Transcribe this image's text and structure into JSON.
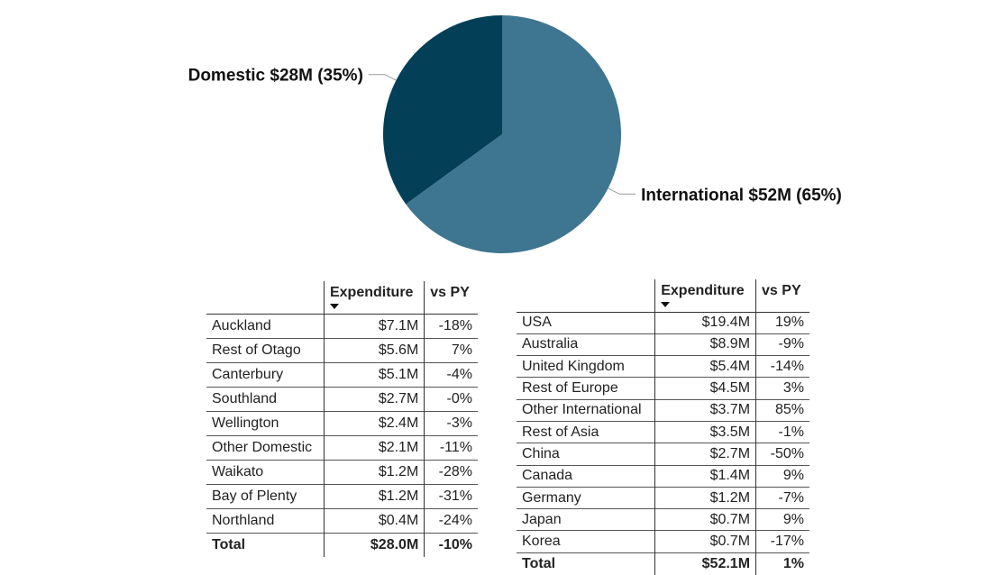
{
  "chart_data": {
    "type": "pie",
    "slices": [
      {
        "label": "Domestic",
        "value": 28,
        "display": "$28M",
        "percent": "35%",
        "color": "#033f56"
      },
      {
        "label": "International",
        "value": 52,
        "display": "$52M",
        "percent": "65%",
        "color": "#3e7590"
      }
    ]
  },
  "domestic_table": {
    "headers": {
      "expenditure": "Expenditure",
      "vs_py": "vs PY"
    },
    "rows": [
      {
        "name": "Auckland",
        "expenditure": "$7.1M",
        "vs_py": "-18%"
      },
      {
        "name": "Rest of Otago",
        "expenditure": "$5.6M",
        "vs_py": "7%"
      },
      {
        "name": "Canterbury",
        "expenditure": "$5.1M",
        "vs_py": "-4%"
      },
      {
        "name": "Southland",
        "expenditure": "$2.7M",
        "vs_py": "-0%"
      },
      {
        "name": "Wellington",
        "expenditure": "$2.4M",
        "vs_py": "-3%"
      },
      {
        "name": "Other Domestic",
        "expenditure": "$2.1M",
        "vs_py": "-11%"
      },
      {
        "name": "Waikato",
        "expenditure": "$1.2M",
        "vs_py": "-28%"
      },
      {
        "name": "Bay of Plenty",
        "expenditure": "$1.2M",
        "vs_py": "-31%"
      },
      {
        "name": "Northland",
        "expenditure": "$0.4M",
        "vs_py": "-24%"
      }
    ],
    "total": {
      "name": "Total",
      "expenditure": "$28.0M",
      "vs_py": "-10%"
    }
  },
  "international_table": {
    "headers": {
      "expenditure": "Expenditure",
      "vs_py": "vs PY"
    },
    "rows": [
      {
        "name": "USA",
        "expenditure": "$19.4M",
        "vs_py": "19%"
      },
      {
        "name": "Australia",
        "expenditure": "$8.9M",
        "vs_py": "-9%"
      },
      {
        "name": "United Kingdom",
        "expenditure": "$5.4M",
        "vs_py": "-14%"
      },
      {
        "name": "Rest of Europe",
        "expenditure": "$4.5M",
        "vs_py": "3%"
      },
      {
        "name": "Other International",
        "expenditure": "$3.7M",
        "vs_py": "85%"
      },
      {
        "name": "Rest of Asia",
        "expenditure": "$3.5M",
        "vs_py": "-1%"
      },
      {
        "name": "China",
        "expenditure": "$2.7M",
        "vs_py": "-50%"
      },
      {
        "name": "Canada",
        "expenditure": "$1.4M",
        "vs_py": "9%"
      },
      {
        "name": "Germany",
        "expenditure": "$1.2M",
        "vs_py": "-7%"
      },
      {
        "name": "Japan",
        "expenditure": "$0.7M",
        "vs_py": "9%"
      },
      {
        "name": "Korea",
        "expenditure": "$0.7M",
        "vs_py": "-17%"
      }
    ],
    "total": {
      "name": "Total",
      "expenditure": "$52.1M",
      "vs_py": "1%"
    }
  }
}
